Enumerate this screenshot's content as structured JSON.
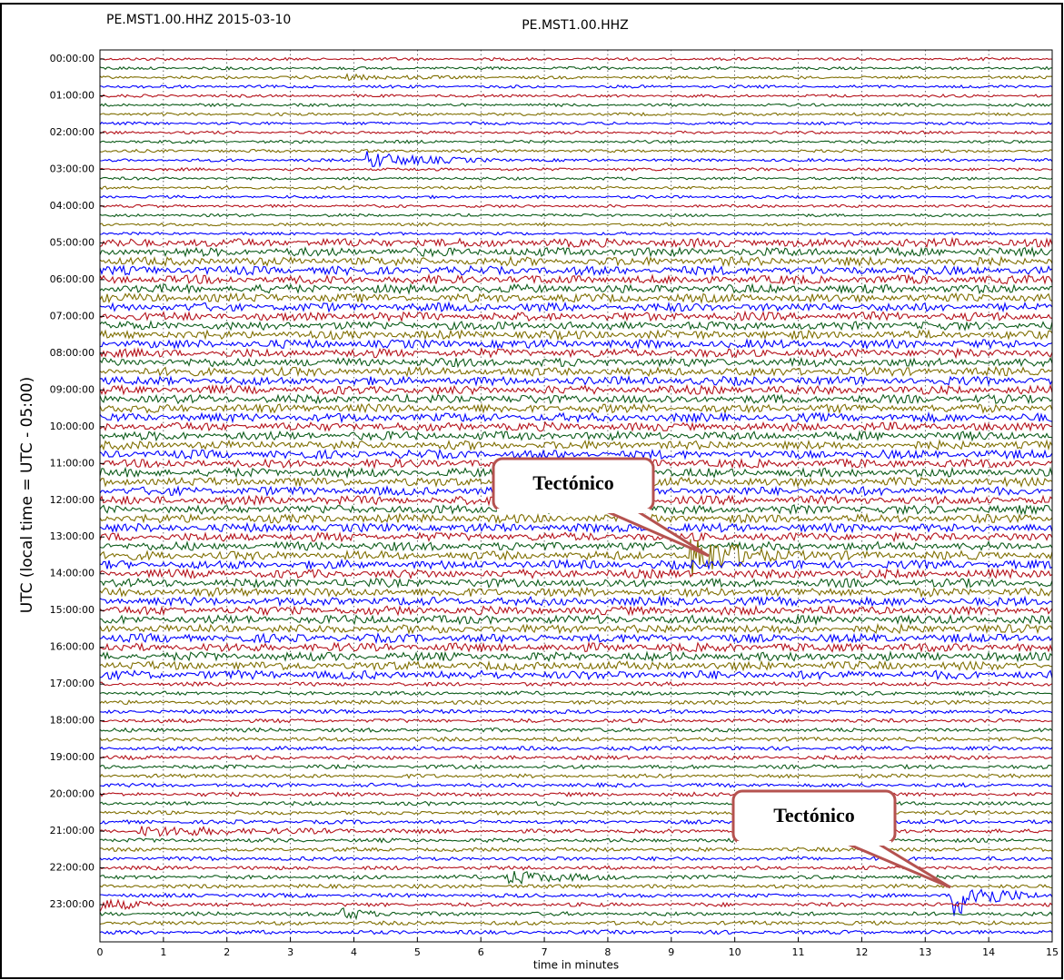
{
  "chart_data": {
    "type": "helicorder",
    "header": "PE.MST1.00.HHZ 2015-03-10",
    "title": "PE.MST1.00.HHZ",
    "ylabel": "UTC (local time = UTC - 05:00)",
    "xlabel": "time in minutes",
    "categories": [
      "00:00:00",
      "01:00:00",
      "02:00:00",
      "03:00:00",
      "04:00:00",
      "05:00:00",
      "06:00:00",
      "07:00:00",
      "08:00:00",
      "09:00:00",
      "10:00:00",
      "11:00:00",
      "12:00:00",
      "13:00:00",
      "14:00:00",
      "15:00:00",
      "16:00:00",
      "17:00:00",
      "18:00:00",
      "19:00:00",
      "20:00:00",
      "21:00:00",
      "22:00:00",
      "23:00:00"
    ],
    "xlim": [
      0,
      15
    ],
    "xticks": [
      0,
      1,
      2,
      3,
      4,
      5,
      6,
      7,
      8,
      9,
      10,
      11,
      12,
      13,
      14,
      15
    ],
    "grid": true,
    "colors": [
      "#b5121b",
      "#0d5c1a",
      "#7f6e00",
      "#0000ff"
    ],
    "annotations": [
      {
        "text": "Tectónico"
      },
      {
        "text": "Tectónico"
      }
    ]
  }
}
